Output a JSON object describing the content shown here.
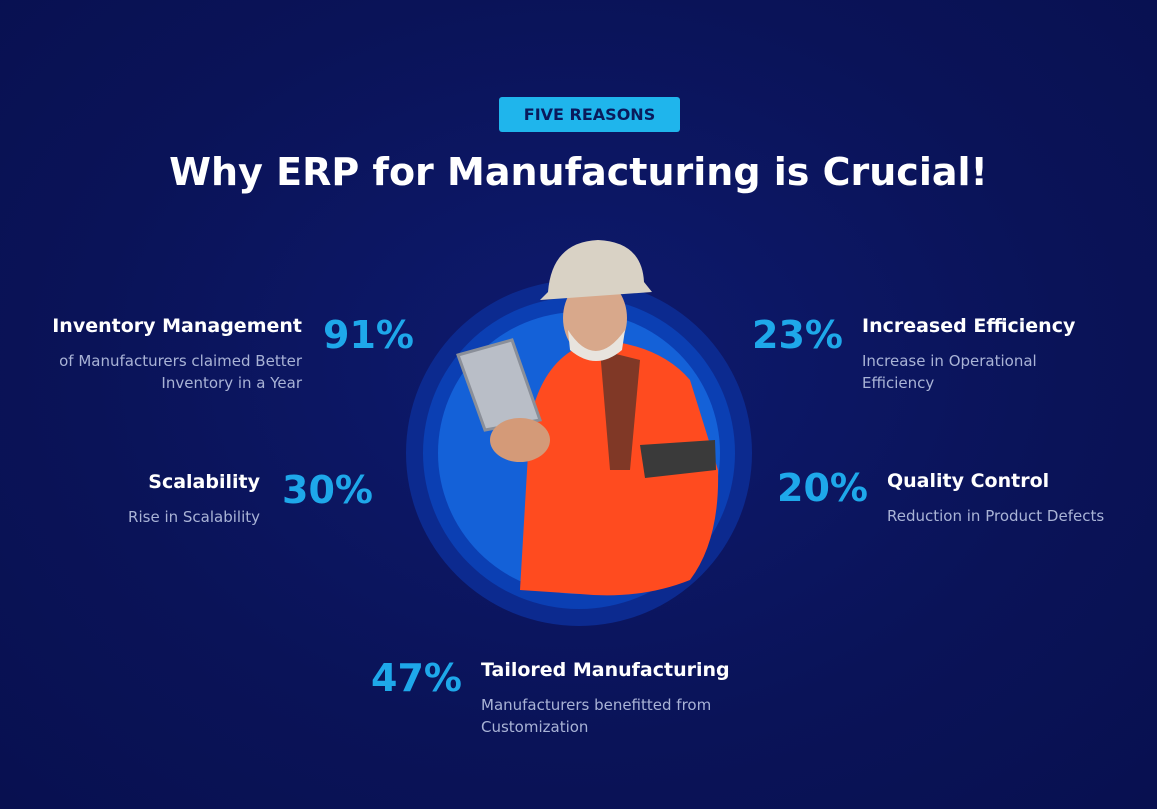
{
  "badge": "FIVE REASONS",
  "title": "Why ERP for Manufacturing is Crucial!",
  "stats": [
    {
      "percent": "91%",
      "label": "Inventory Management",
      "description": [
        "of Manufacturers claimed Better",
        "Inventory in a Year"
      ]
    },
    {
      "percent": "30%",
      "label": "Scalability",
      "description": [
        "Rise in Scalability"
      ]
    },
    {
      "percent": "23%",
      "label": "Increased Efficiency",
      "description": [
        "Increase in Operational",
        "Efficiency"
      ]
    },
    {
      "percent": "20%",
      "label": "Quality Control",
      "description": [
        "Reduction in Product Defects"
      ]
    },
    {
      "percent": "47%",
      "label": "Tailored Manufacturing",
      "description": [
        "Manufacturers benefitted from",
        "Customization"
      ]
    }
  ]
}
